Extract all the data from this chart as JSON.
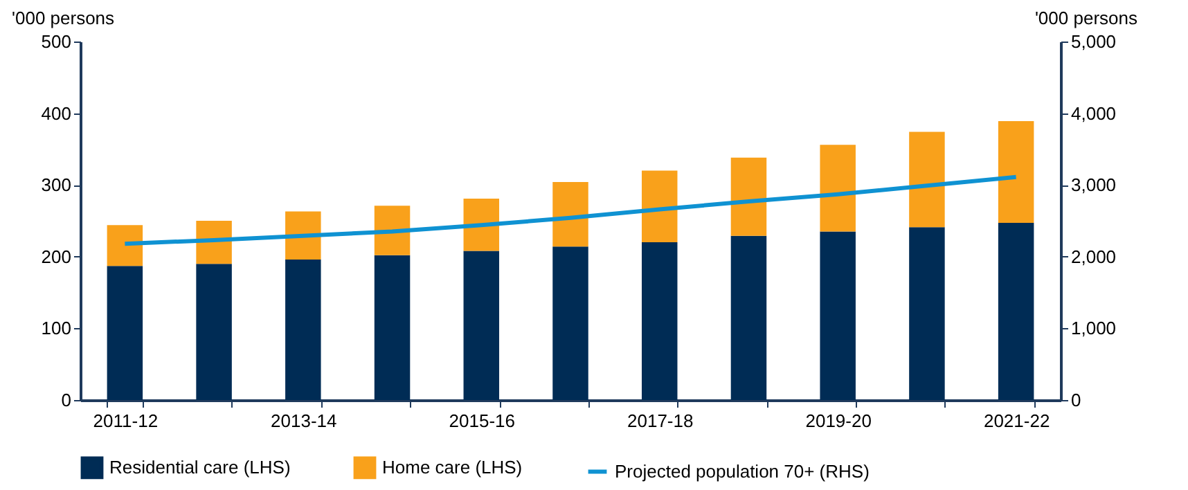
{
  "chart_data": {
    "type": "bar",
    "stacked": true,
    "categories": [
      "2011-12",
      null,
      "2013-14",
      null,
      "2015-16",
      null,
      "2017-18",
      null,
      "2019-20",
      null,
      "2021-22"
    ],
    "ylabel": "'000 persons",
    "y2label": "'000 persons",
    "ylim": [
      0,
      500
    ],
    "yticks": [
      0,
      100,
      200,
      300,
      400,
      500
    ],
    "y2lim": [
      0,
      5000
    ],
    "y2ticks": [
      {
        "value": 0,
        "label": "0"
      },
      {
        "value": 1000,
        "label": "1,000"
      },
      {
        "value": 2000,
        "label": "2,000"
      },
      {
        "value": 3000,
        "label": "3,000"
      },
      {
        "value": 4000,
        "label": "4,000"
      },
      {
        "value": 5000,
        "label": "5,000"
      }
    ],
    "series": [
      {
        "name": "Residential care (LHS)",
        "color": "#002c55",
        "values": [
          187,
          190,
          196,
          202,
          208,
          214,
          220,
          229,
          235,
          241,
          247
        ]
      },
      {
        "name": "Home care (LHS)",
        "color": "#f9a11b",
        "values": [
          57,
          60,
          67,
          69,
          73,
          90,
          100,
          109,
          121,
          133,
          142
        ]
      },
      {
        "name": "Projected population 70+ (RHS)",
        "color": "#0f92d2",
        "type": "line",
        "axis": "y2",
        "marker": "none",
        "line_style": "solid",
        "values": [
          2180,
          2230,
          2290,
          2350,
          2440,
          2540,
          2660,
          2770,
          2870,
          2990,
          3110
        ]
      }
    ],
    "grid": false,
    "legend": "bottom"
  }
}
